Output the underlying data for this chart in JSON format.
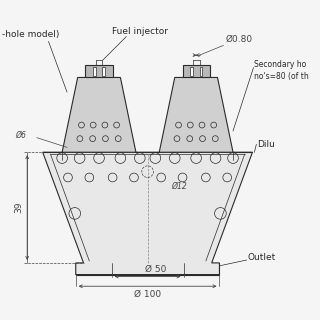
{
  "bg_color": "#f5f5f5",
  "line_color": "#2a2a2a",
  "dim_color": "#444444",
  "fill_light": "#e8e8e8",
  "fill_mid": "#d0d0d0",
  "fill_dark": "#b8b8b8",
  "annotations": {
    "fuel_injector": "Fuel injector",
    "hole_model": "-hole model)",
    "phi_080": "Ø0.80",
    "phi_6": "Ø6",
    "phi_12": "Ø12",
    "phi_50": "Ø 50",
    "phi_100": "Ø 100",
    "secondary": "Secondary ho\nno's=80 (of th",
    "dilution": "Dilu",
    "outlet": "Outlet",
    "dim_39": "39"
  },
  "figsize": [
    3.2,
    3.2
  ],
  "dpi": 100
}
